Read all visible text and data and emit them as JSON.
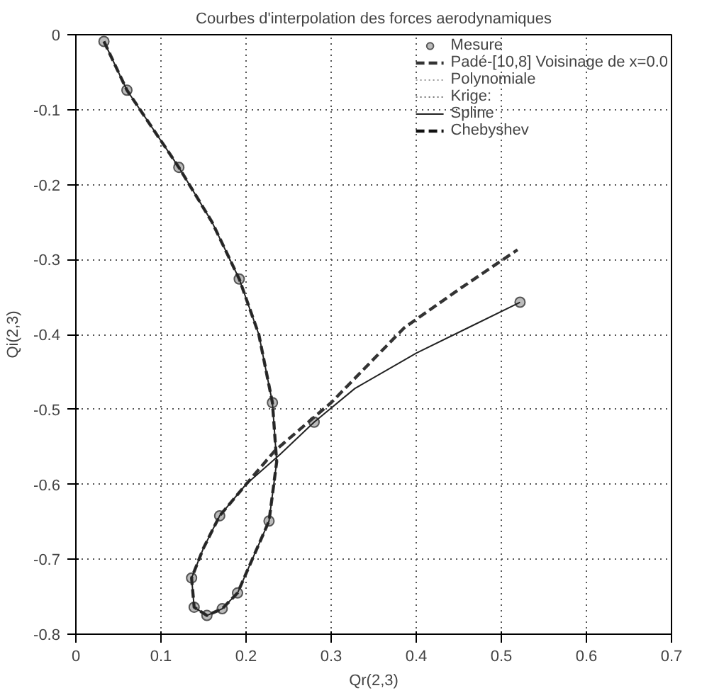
{
  "chart_data": {
    "type": "line",
    "title": "Courbes d'interpolation des forces aerodynamiques",
    "xlabel": "Qr(2,3)",
    "ylabel": "Qi(2,3)",
    "xlim": [
      0,
      0.7
    ],
    "ylim": [
      -0.8,
      0
    ],
    "xticks": [
      0,
      0.1,
      0.2,
      0.3,
      0.4,
      0.5,
      0.6,
      0.7
    ],
    "yticks": [
      -0.8,
      -0.7,
      -0.6,
      -0.5,
      -0.4,
      -0.3,
      -0.2,
      -0.1,
      0
    ],
    "grid": true,
    "legend": "top right",
    "series": [
      {
        "name": "Mesure",
        "type": "scatter",
        "marker": "circle",
        "color": "#555555",
        "x": [
          0.033,
          0.06,
          0.121,
          0.192,
          0.231,
          0.227,
          0.19,
          0.172,
          0.154,
          0.139,
          0.136,
          0.169,
          0.28,
          0.522
        ],
        "values": [
          -0.009,
          -0.074,
          -0.177,
          -0.326,
          -0.491,
          -0.649,
          -0.745,
          -0.766,
          -0.775,
          -0.764,
          -0.725,
          -0.642,
          -0.517,
          -0.357
        ]
      },
      {
        "name": "Padé-[10,8] Voisinage de x=0.0",
        "line_style": "dashed",
        "color": "#333333",
        "x": [
          0.033,
          0.06,
          0.121,
          0.16,
          0.192,
          0.215,
          0.231,
          0.236,
          0.227,
          0.19,
          0.172,
          0.154,
          0.139,
          0.136,
          0.15,
          0.169,
          0.2,
          0.234,
          0.3,
          0.386,
          0.45,
          0.519
        ],
        "values": [
          -0.009,
          -0.074,
          -0.177,
          -0.25,
          -0.326,
          -0.4,
          -0.491,
          -0.57,
          -0.649,
          -0.745,
          -0.766,
          -0.775,
          -0.764,
          -0.725,
          -0.685,
          -0.642,
          -0.6,
          -0.555,
          -0.491,
          -0.391,
          -0.34,
          -0.287
        ]
      },
      {
        "name": "Polynomiale",
        "line_style": "dotted",
        "color": "#999999"
      },
      {
        "name": "Krige:",
        "line_style": "dotted",
        "color": "#777777"
      },
      {
        "name": "Spline",
        "line_style": "solid",
        "color": "#222222",
        "x": [
          0.033,
          0.06,
          0.121,
          0.16,
          0.192,
          0.215,
          0.231,
          0.236,
          0.227,
          0.19,
          0.172,
          0.154,
          0.139,
          0.136,
          0.15,
          0.169,
          0.2,
          0.24,
          0.28,
          0.328,
          0.4,
          0.461,
          0.522
        ],
        "values": [
          -0.009,
          -0.074,
          -0.177,
          -0.25,
          -0.326,
          -0.4,
          -0.491,
          -0.57,
          -0.649,
          -0.745,
          -0.766,
          -0.775,
          -0.764,
          -0.725,
          -0.685,
          -0.642,
          -0.6,
          -0.56,
          -0.517,
          -0.472,
          -0.425,
          -0.391,
          -0.357
        ]
      },
      {
        "name": "Chebyshev",
        "line_style": "dashed",
        "color": "#111111"
      }
    ]
  }
}
